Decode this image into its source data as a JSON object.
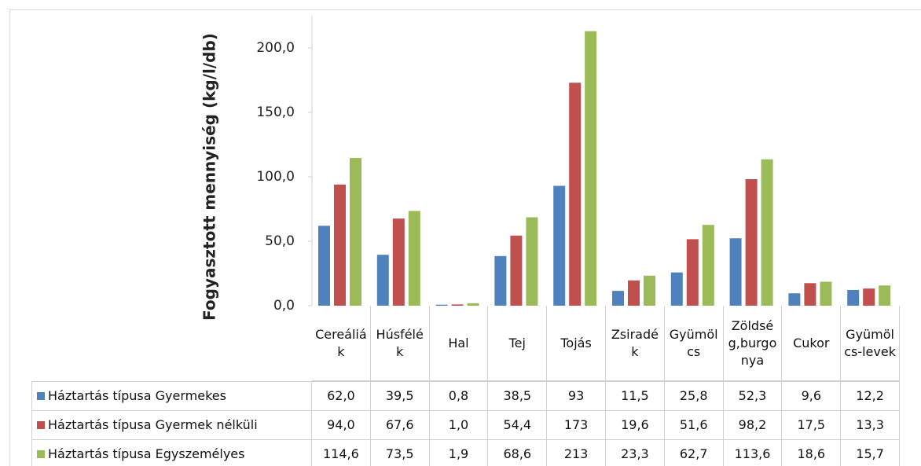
{
  "chart_data": {
    "type": "bar",
    "y_label": "Fogyasztott mennyiség (kg/l/db)",
    "categories": [
      "Cereáliák",
      "Húsfélék",
      "Hal",
      "Tej",
      "Tojás",
      "Zsiradék",
      "Gyümölcs",
      "Zöldség,burgonya",
      "Cukor",
      "Gyümölcs-levek"
    ],
    "series": [
      {
        "name": "Háztartás típusa Gyermekes",
        "color": "#4f81bd",
        "values": [
          62.0,
          39.5,
          0.8,
          38.5,
          93,
          11.5,
          25.8,
          52.3,
          9.6,
          12.2
        ],
        "value_labels": [
          "62,0",
          "39,5",
          "0,8",
          "38,5",
          "93",
          "11,5",
          "25,8",
          "52,3",
          "9,6",
          "12,2"
        ]
      },
      {
        "name": "Háztartás típusa Gyermek nélküli",
        "color": "#c0504d",
        "values": [
          94.0,
          67.6,
          1.0,
          54.4,
          173,
          19.6,
          51.6,
          98.2,
          17.5,
          13.3
        ],
        "value_labels": [
          "94,0",
          "67,6",
          "1,0",
          "54,4",
          "173",
          "19,6",
          "51,6",
          "98,2",
          "17,5",
          "13,3"
        ]
      },
      {
        "name": "Háztartás típusa Egyszemélyes",
        "color": "#9bbb59",
        "values": [
          114.6,
          73.5,
          1.9,
          68.6,
          213,
          23.3,
          62.7,
          113.6,
          18.6,
          15.7
        ],
        "value_labels": [
          "114,6",
          "73,5",
          "1,9",
          "68,6",
          "213",
          "23,3",
          "62,7",
          "113,6",
          "18,6",
          "15,7"
        ]
      }
    ],
    "ylim": [
      0,
      225
    ],
    "yticks": [
      {
        "value": 0,
        "label": "0,0"
      },
      {
        "value": 50,
        "label": "50,0"
      },
      {
        "value": 100,
        "label": "100,0"
      },
      {
        "value": 150,
        "label": "150,0"
      },
      {
        "value": 200,
        "label": "200,0"
      }
    ],
    "data_table": true
  }
}
